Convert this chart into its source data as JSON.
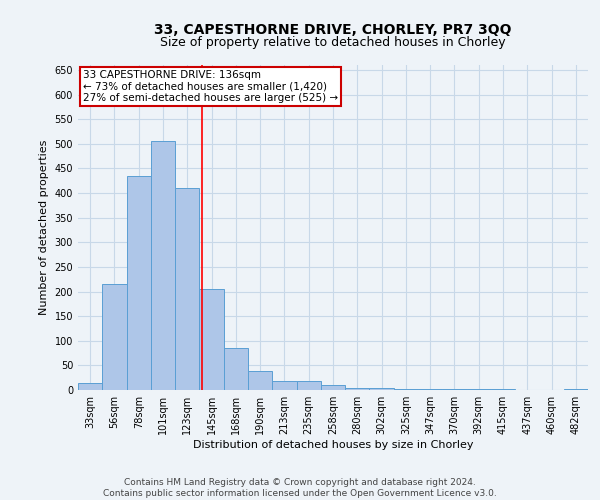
{
  "title": "33, CAPESTHORNE DRIVE, CHORLEY, PR7 3QQ",
  "subtitle": "Size of property relative to detached houses in Chorley",
  "xlabel": "Distribution of detached houses by size in Chorley",
  "ylabel": "Number of detached properties",
  "bin_labels": [
    "33sqm",
    "56sqm",
    "78sqm",
    "101sqm",
    "123sqm",
    "145sqm",
    "168sqm",
    "190sqm",
    "213sqm",
    "235sqm",
    "258sqm",
    "280sqm",
    "302sqm",
    "325sqm",
    "347sqm",
    "370sqm",
    "392sqm",
    "415sqm",
    "437sqm",
    "460sqm",
    "482sqm"
  ],
  "bar_values": [
    15,
    215,
    435,
    505,
    410,
    205,
    85,
    38,
    18,
    18,
    10,
    5,
    5,
    3,
    3,
    3,
    3,
    3,
    0,
    0,
    3
  ],
  "bar_color": "#aec6e8",
  "bar_edge_color": "#5a9fd4",
  "grid_color": "#c8d8e8",
  "background_color": "#eef3f8",
  "marker_value": 136,
  "marker_bin_low": 123,
  "marker_bin_high": 145,
  "marker_bin_idx_low": 4,
  "annotation_line1": "33 CAPESTHORNE DRIVE: 136sqm",
  "annotation_line2": "← 73% of detached houses are smaller (1,420)",
  "annotation_line3": "27% of semi-detached houses are larger (525) →",
  "annotation_box_color": "#ffffff",
  "annotation_box_edge_color": "#cc0000",
  "ylim": [
    0,
    660
  ],
  "yticks": [
    0,
    50,
    100,
    150,
    200,
    250,
    300,
    350,
    400,
    450,
    500,
    550,
    600,
    650
  ],
  "footer_line1": "Contains HM Land Registry data © Crown copyright and database right 2024.",
  "footer_line2": "Contains public sector information licensed under the Open Government Licence v3.0.",
  "title_fontsize": 10,
  "subtitle_fontsize": 9,
  "axis_label_fontsize": 8,
  "tick_fontsize": 7,
  "annotation_fontsize": 7.5,
  "footer_fontsize": 6.5
}
